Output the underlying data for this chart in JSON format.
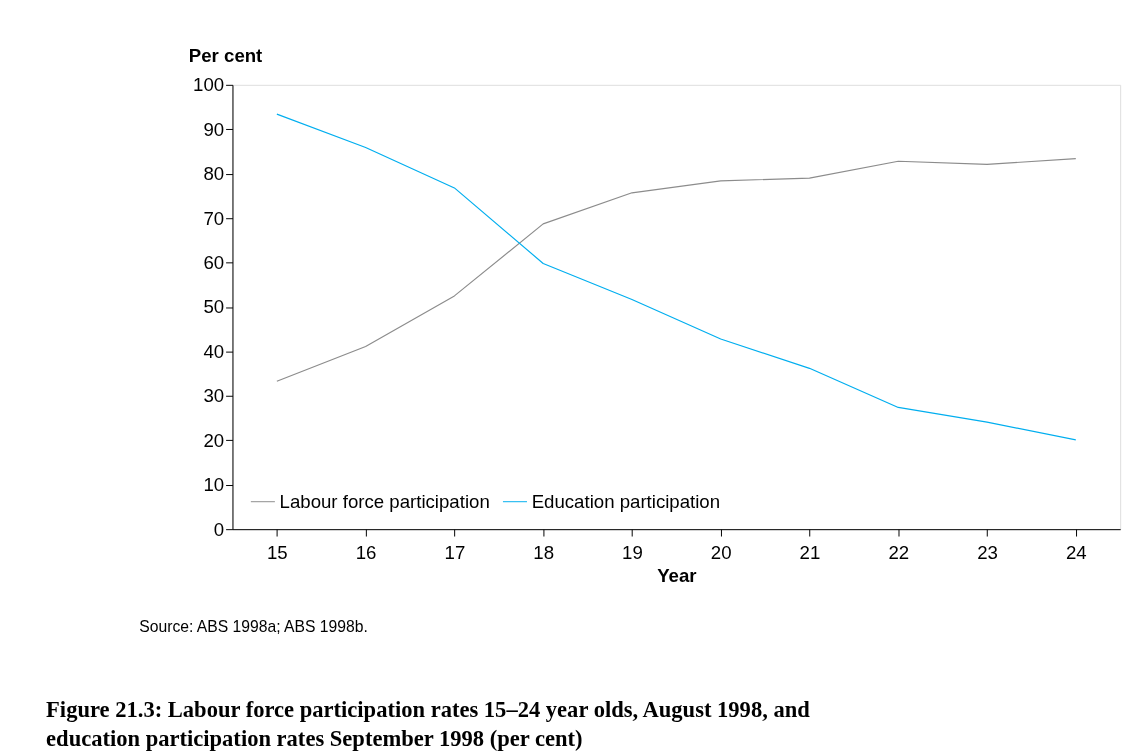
{
  "chart_data": {
    "type": "line",
    "title": "Figure 21.3: Labour force participation rates 15–24 year olds, August 1998, and education participation rates September 1998 (per cent)",
    "xlabel": "Year",
    "ylabel": "Per cent",
    "categories": [
      "15",
      "16",
      "17",
      "18",
      "19",
      "20",
      "21",
      "22",
      "23",
      "24"
    ],
    "series": [
      {
        "name": "Labour force participation",
        "color": "#8c8c8c",
        "values": [
          33.3,
          41.1,
          52.5,
          68.7,
          75.7,
          78.4,
          79.0,
          82.8,
          82.1,
          83.4
        ]
      },
      {
        "name": "Education participation",
        "color": "#00aeef",
        "values": [
          93.4,
          85.9,
          76.8,
          59.8,
          51.7,
          42.8,
          36.2,
          27.4,
          24.1,
          20.1
        ]
      }
    ],
    "ylim": [
      0,
      100
    ],
    "yticks": [
      0,
      10,
      20,
      30,
      40,
      50,
      60,
      70,
      80,
      90,
      100
    ],
    "grid": false,
    "legend": "bottom left",
    "marker": "none",
    "line_style": "solid",
    "annotations": [
      "Source: ABS 1998a; ABS 1998b."
    ]
  }
}
